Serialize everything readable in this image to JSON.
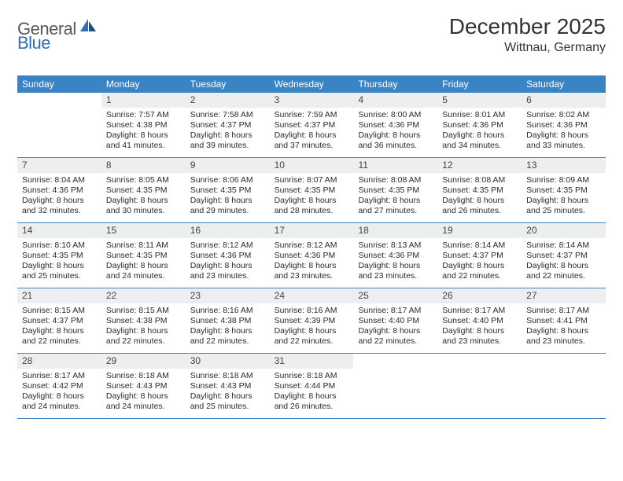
{
  "brand": {
    "part1": "General",
    "part2": "Blue"
  },
  "title": "December 2025",
  "location": "Wittnau, Germany",
  "colors": {
    "header_bg": "#3b84c4",
    "header_text": "#ffffff",
    "daynum_bg": "#eceeef",
    "rule": "#3b84c4",
    "brand_gray": "#57585a",
    "brand_blue": "#2f6fb4"
  },
  "day_names": [
    "Sunday",
    "Monday",
    "Tuesday",
    "Wednesday",
    "Thursday",
    "Friday",
    "Saturday"
  ],
  "weeks": [
    [
      {
        "n": "",
        "sr": "",
        "ss": "",
        "dl": ""
      },
      {
        "n": "1",
        "sr": "Sunrise: 7:57 AM",
        "ss": "Sunset: 4:38 PM",
        "dl": "Daylight: 8 hours and 41 minutes."
      },
      {
        "n": "2",
        "sr": "Sunrise: 7:58 AM",
        "ss": "Sunset: 4:37 PM",
        "dl": "Daylight: 8 hours and 39 minutes."
      },
      {
        "n": "3",
        "sr": "Sunrise: 7:59 AM",
        "ss": "Sunset: 4:37 PM",
        "dl": "Daylight: 8 hours and 37 minutes."
      },
      {
        "n": "4",
        "sr": "Sunrise: 8:00 AM",
        "ss": "Sunset: 4:36 PM",
        "dl": "Daylight: 8 hours and 36 minutes."
      },
      {
        "n": "5",
        "sr": "Sunrise: 8:01 AM",
        "ss": "Sunset: 4:36 PM",
        "dl": "Daylight: 8 hours and 34 minutes."
      },
      {
        "n": "6",
        "sr": "Sunrise: 8:02 AM",
        "ss": "Sunset: 4:36 PM",
        "dl": "Daylight: 8 hours and 33 minutes."
      }
    ],
    [
      {
        "n": "7",
        "sr": "Sunrise: 8:04 AM",
        "ss": "Sunset: 4:36 PM",
        "dl": "Daylight: 8 hours and 32 minutes."
      },
      {
        "n": "8",
        "sr": "Sunrise: 8:05 AM",
        "ss": "Sunset: 4:35 PM",
        "dl": "Daylight: 8 hours and 30 minutes."
      },
      {
        "n": "9",
        "sr": "Sunrise: 8:06 AM",
        "ss": "Sunset: 4:35 PM",
        "dl": "Daylight: 8 hours and 29 minutes."
      },
      {
        "n": "10",
        "sr": "Sunrise: 8:07 AM",
        "ss": "Sunset: 4:35 PM",
        "dl": "Daylight: 8 hours and 28 minutes."
      },
      {
        "n": "11",
        "sr": "Sunrise: 8:08 AM",
        "ss": "Sunset: 4:35 PM",
        "dl": "Daylight: 8 hours and 27 minutes."
      },
      {
        "n": "12",
        "sr": "Sunrise: 8:08 AM",
        "ss": "Sunset: 4:35 PM",
        "dl": "Daylight: 8 hours and 26 minutes."
      },
      {
        "n": "13",
        "sr": "Sunrise: 8:09 AM",
        "ss": "Sunset: 4:35 PM",
        "dl": "Daylight: 8 hours and 25 minutes."
      }
    ],
    [
      {
        "n": "14",
        "sr": "Sunrise: 8:10 AM",
        "ss": "Sunset: 4:35 PM",
        "dl": "Daylight: 8 hours and 25 minutes."
      },
      {
        "n": "15",
        "sr": "Sunrise: 8:11 AM",
        "ss": "Sunset: 4:35 PM",
        "dl": "Daylight: 8 hours and 24 minutes."
      },
      {
        "n": "16",
        "sr": "Sunrise: 8:12 AM",
        "ss": "Sunset: 4:36 PM",
        "dl": "Daylight: 8 hours and 23 minutes."
      },
      {
        "n": "17",
        "sr": "Sunrise: 8:12 AM",
        "ss": "Sunset: 4:36 PM",
        "dl": "Daylight: 8 hours and 23 minutes."
      },
      {
        "n": "18",
        "sr": "Sunrise: 8:13 AM",
        "ss": "Sunset: 4:36 PM",
        "dl": "Daylight: 8 hours and 23 minutes."
      },
      {
        "n": "19",
        "sr": "Sunrise: 8:14 AM",
        "ss": "Sunset: 4:37 PM",
        "dl": "Daylight: 8 hours and 22 minutes."
      },
      {
        "n": "20",
        "sr": "Sunrise: 8:14 AM",
        "ss": "Sunset: 4:37 PM",
        "dl": "Daylight: 8 hours and 22 minutes."
      }
    ],
    [
      {
        "n": "21",
        "sr": "Sunrise: 8:15 AM",
        "ss": "Sunset: 4:37 PM",
        "dl": "Daylight: 8 hours and 22 minutes."
      },
      {
        "n": "22",
        "sr": "Sunrise: 8:15 AM",
        "ss": "Sunset: 4:38 PM",
        "dl": "Daylight: 8 hours and 22 minutes."
      },
      {
        "n": "23",
        "sr": "Sunrise: 8:16 AM",
        "ss": "Sunset: 4:38 PM",
        "dl": "Daylight: 8 hours and 22 minutes."
      },
      {
        "n": "24",
        "sr": "Sunrise: 8:16 AM",
        "ss": "Sunset: 4:39 PM",
        "dl": "Daylight: 8 hours and 22 minutes."
      },
      {
        "n": "25",
        "sr": "Sunrise: 8:17 AM",
        "ss": "Sunset: 4:40 PM",
        "dl": "Daylight: 8 hours and 22 minutes."
      },
      {
        "n": "26",
        "sr": "Sunrise: 8:17 AM",
        "ss": "Sunset: 4:40 PM",
        "dl": "Daylight: 8 hours and 23 minutes."
      },
      {
        "n": "27",
        "sr": "Sunrise: 8:17 AM",
        "ss": "Sunset: 4:41 PM",
        "dl": "Daylight: 8 hours and 23 minutes."
      }
    ],
    [
      {
        "n": "28",
        "sr": "Sunrise: 8:17 AM",
        "ss": "Sunset: 4:42 PM",
        "dl": "Daylight: 8 hours and 24 minutes."
      },
      {
        "n": "29",
        "sr": "Sunrise: 8:18 AM",
        "ss": "Sunset: 4:43 PM",
        "dl": "Daylight: 8 hours and 24 minutes."
      },
      {
        "n": "30",
        "sr": "Sunrise: 8:18 AM",
        "ss": "Sunset: 4:43 PM",
        "dl": "Daylight: 8 hours and 25 minutes."
      },
      {
        "n": "31",
        "sr": "Sunrise: 8:18 AM",
        "ss": "Sunset: 4:44 PM",
        "dl": "Daylight: 8 hours and 26 minutes."
      },
      {
        "n": "",
        "sr": "",
        "ss": "",
        "dl": ""
      },
      {
        "n": "",
        "sr": "",
        "ss": "",
        "dl": ""
      },
      {
        "n": "",
        "sr": "",
        "ss": "",
        "dl": ""
      }
    ]
  ]
}
